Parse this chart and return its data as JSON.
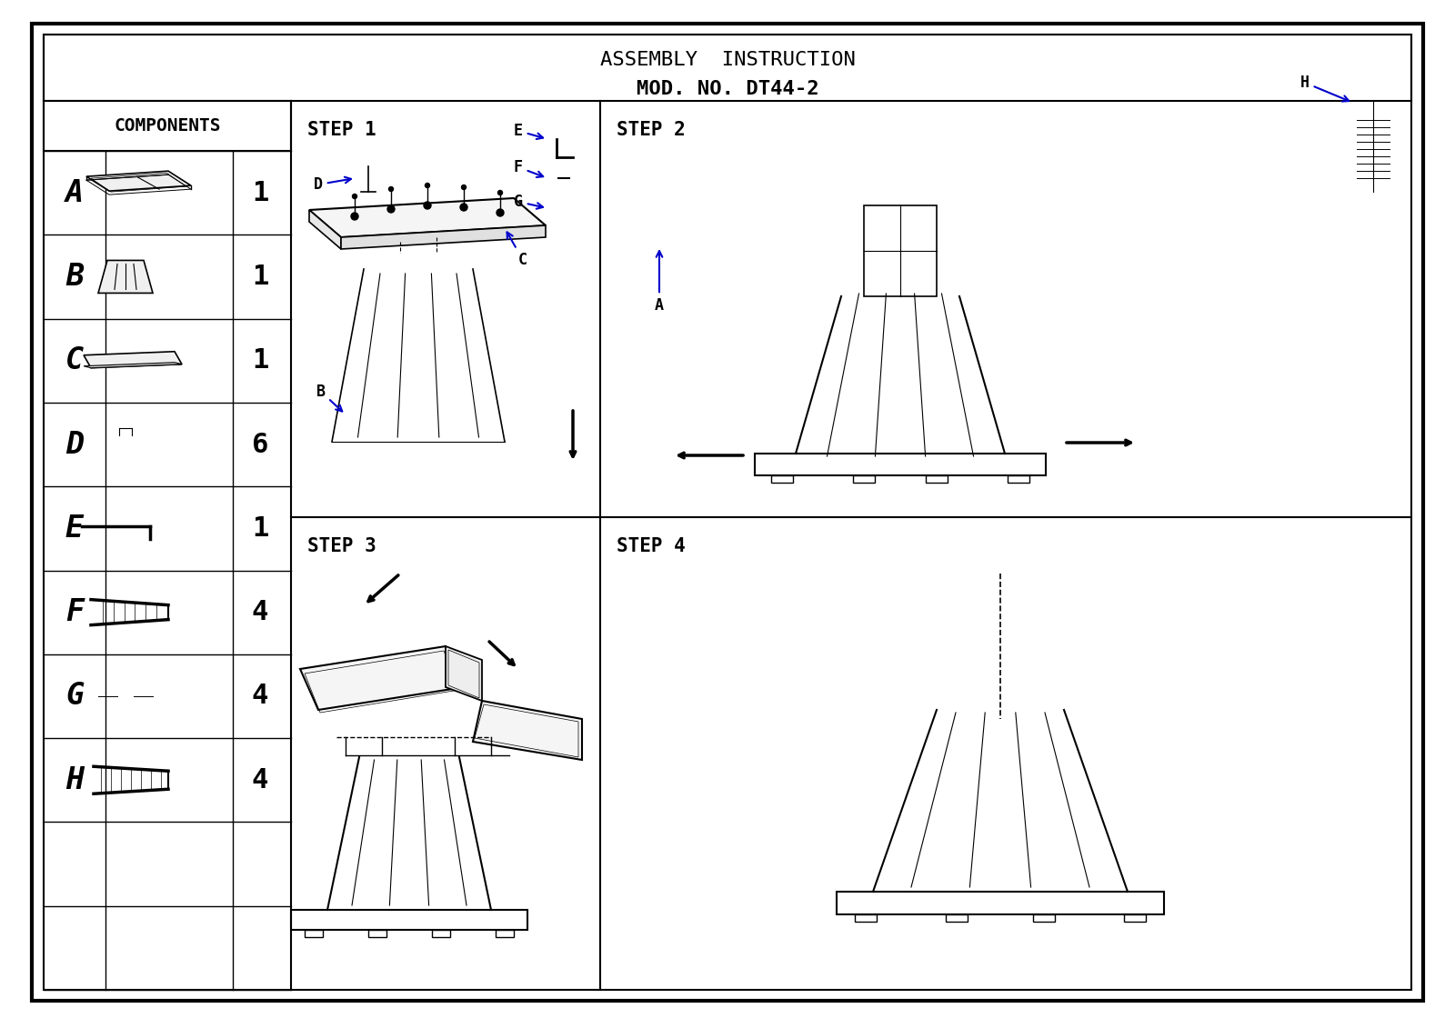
{
  "title_line1": "ASSEMBLY  INSTRUCTION",
  "title_line2": "MOD. NO. DT44-2",
  "bg_color": "#ffffff",
  "border_color": "#000000",
  "components_header": "COMPONENTS",
  "component_labels": [
    "A",
    "B",
    "C",
    "D",
    "E",
    "F",
    "G",
    "H"
  ],
  "component_counts": [
    "1",
    "1",
    "1",
    "6",
    "1",
    "4",
    "4",
    "4"
  ],
  "step_labels": [
    "STEP 1",
    "STEP 2",
    "STEP 3",
    "STEP 4"
  ],
  "text_color": "#000000",
  "arrow_color": "#0000cc",
  "line_color": "#000000",
  "title_fontsize": 15,
  "step_fontsize": 13,
  "component_label_fontsize": 22,
  "count_fontsize": 20,
  "header_fontsize": 14
}
